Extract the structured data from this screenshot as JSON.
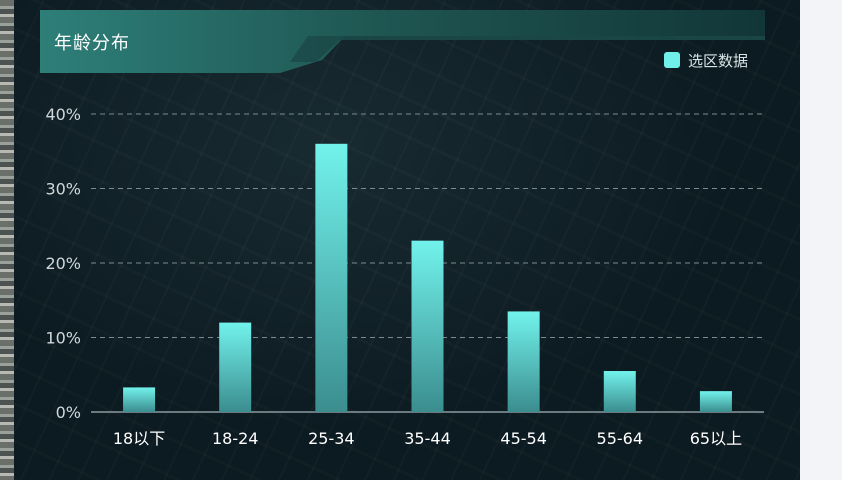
{
  "title": "年龄分布",
  "legend": {
    "label": "选区数据",
    "color": "#6ff0ea"
  },
  "colors": {
    "bar_top": "#72f2ec",
    "bar_bottom": "#3b8d8e",
    "grid": "#7c8b90",
    "axis": "#8b9aa0",
    "tick_text": "#d0d8db"
  },
  "chart_data": {
    "type": "bar",
    "categories": [
      "18以下",
      "18-24",
      "25-34",
      "35-44",
      "45-54",
      "55-64",
      "65以上"
    ],
    "series": [
      {
        "name": "选区数据",
        "values": [
          3.3,
          12.0,
          36.0,
          23.0,
          13.5,
          5.5,
          2.8
        ]
      }
    ],
    "ylim": [
      0,
      40
    ],
    "yticks": [
      "0%",
      "10%",
      "20%",
      "30%",
      "40%"
    ],
    "grid": true,
    "legend_position": "top-right"
  }
}
